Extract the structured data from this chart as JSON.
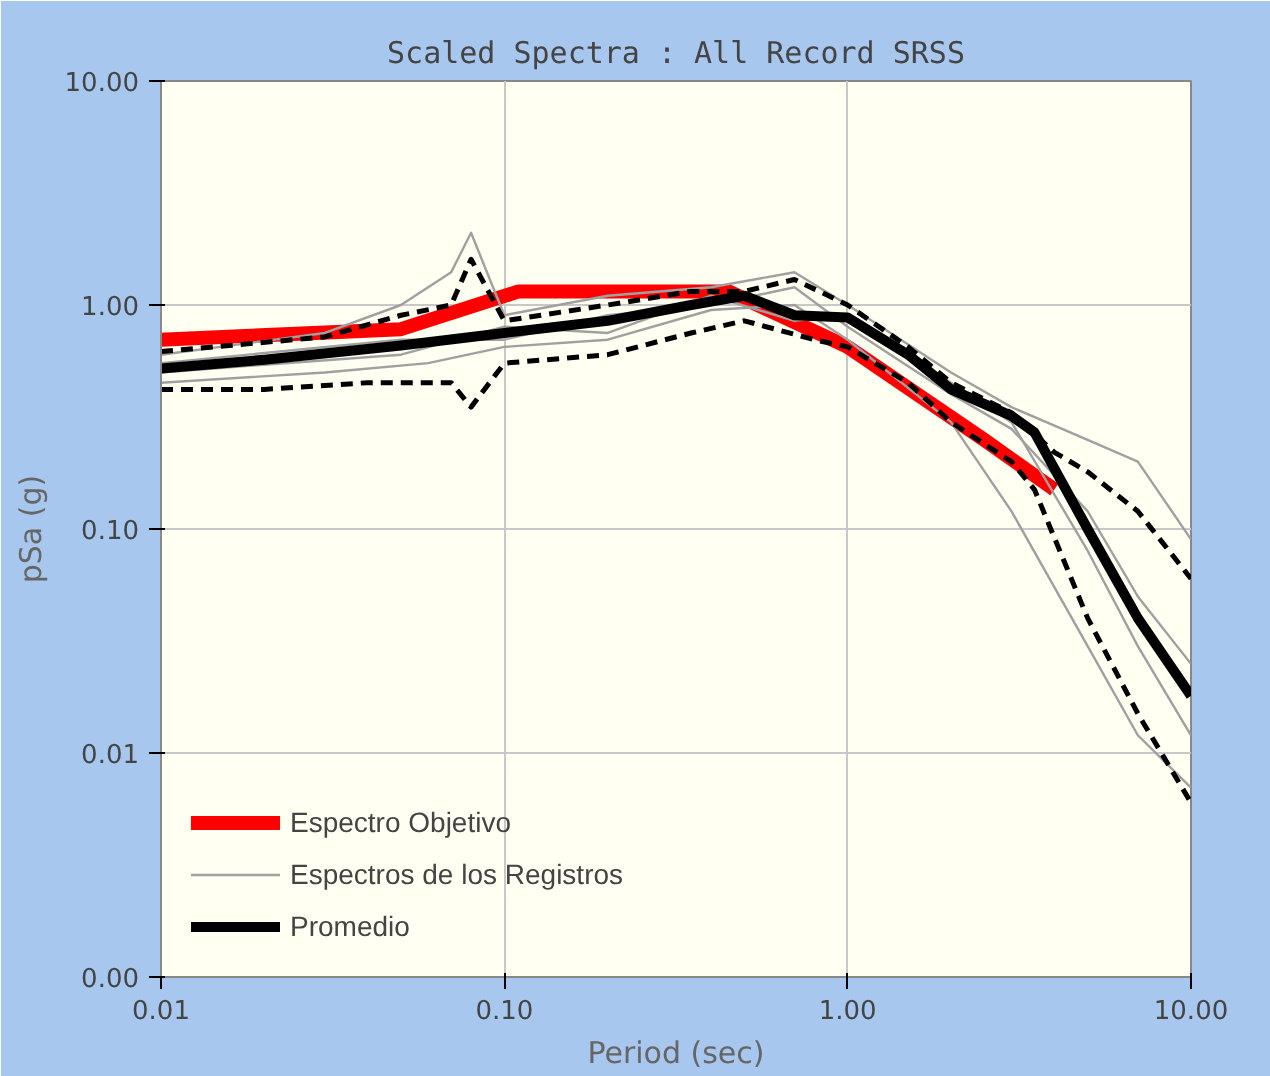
{
  "chart_data": {
    "type": "line",
    "title": "Scaled Spectra : All Record SRSS",
    "xlabel": "Period (sec)",
    "ylabel": "pSa (g)",
    "log": "xy",
    "grid": true,
    "legend": "bottom left",
    "xlim": [
      0.01,
      10
    ],
    "ylim": [
      0.001,
      10
    ],
    "xticks": [
      {
        "value": 0.01,
        "label": "0.01"
      },
      {
        "value": 0.1,
        "label": "0.10"
      },
      {
        "value": 1,
        "label": "1.00"
      },
      {
        "value": 10,
        "label": "10.00"
      }
    ],
    "yticks": [
      {
        "value": 0.001,
        "label": "0.00"
      },
      {
        "value": 0.01,
        "label": "0.01"
      },
      {
        "value": 0.1,
        "label": "0.10"
      },
      {
        "value": 1,
        "label": "1.00"
      },
      {
        "value": 10,
        "label": "10.00"
      }
    ],
    "series": [
      {
        "name": "Espectro Objetivo",
        "color": "#ff0000",
        "x": [
          0.01,
          0.05,
          0.11,
          0.45,
          1.0,
          2.5,
          4.0
        ],
        "values": [
          0.7,
          0.78,
          1.15,
          1.15,
          0.65,
          0.25,
          0.15
        ]
      },
      {
        "name": "Espectros de los Registros",
        "color": "#a0a0a0",
        "x": [
          0.01,
          0.03,
          0.05,
          0.07,
          0.08,
          0.1,
          0.2,
          0.4,
          0.7,
          1.0,
          2,
          3,
          5,
          7,
          10
        ],
        "values": [
          0.6,
          0.75,
          1.0,
          1.4,
          2.1,
          0.9,
          1.1,
          1.2,
          1.4,
          1.0,
          0.5,
          0.35,
          0.25,
          0.2,
          0.09
        ]
      },
      {
        "color": "#a0a0a0",
        "x": [
          0.01,
          0.03,
          0.06,
          0.1,
          0.2,
          0.4,
          0.7,
          1.0,
          2,
          3,
          5,
          7,
          10
        ],
        "values": [
          0.45,
          0.5,
          0.55,
          0.65,
          0.7,
          0.95,
          1.0,
          0.7,
          0.3,
          0.12,
          0.03,
          0.012,
          0.007
        ]
      },
      {
        "color": "#a0a0a0",
        "x": [
          0.01,
          0.05,
          0.1,
          0.2,
          0.4,
          0.7,
          1.0,
          2,
          3,
          5,
          7,
          10
        ],
        "values": [
          0.5,
          0.6,
          0.8,
          0.75,
          1.1,
          0.85,
          0.9,
          0.45,
          0.3,
          0.08,
          0.03,
          0.012
        ]
      },
      {
        "color": "#a0a0a0",
        "x": [
          0.01,
          0.05,
          0.1,
          0.2,
          0.4,
          0.7,
          1,
          2,
          3,
          5,
          7,
          10
        ],
        "values": [
          0.55,
          0.7,
          0.7,
          0.9,
          1.0,
          1.2,
          0.8,
          0.4,
          0.28,
          0.12,
          0.05,
          0.025
        ]
      },
      {
        "color": "#000000",
        "line_style": "dashed",
        "x": [
          0.01,
          0.03,
          0.05,
          0.07,
          0.08,
          0.1,
          0.2,
          0.35,
          0.5,
          0.7,
          1.0,
          1.5,
          2.0,
          3.0,
          4,
          5,
          7,
          10
        ],
        "values": [
          0.62,
          0.72,
          0.9,
          1.0,
          1.6,
          0.85,
          1.0,
          1.15,
          1.15,
          1.3,
          1.0,
          0.65,
          0.45,
          0.33,
          0.22,
          0.18,
          0.12,
          0.06
        ]
      },
      {
        "color": "#000000",
        "line_style": "dashed",
        "x": [
          0.01,
          0.02,
          0.04,
          0.07,
          0.08,
          0.1,
          0.2,
          0.35,
          0.5,
          0.8,
          1.0,
          1.5,
          2.0,
          3.0,
          3.5,
          5,
          7,
          10
        ],
        "values": [
          0.42,
          0.42,
          0.45,
          0.45,
          0.35,
          0.55,
          0.6,
          0.75,
          0.85,
          0.7,
          0.65,
          0.45,
          0.3,
          0.2,
          0.15,
          0.04,
          0.015,
          0.006
        ]
      },
      {
        "name": "Promedio",
        "color": "#000000",
        "x": [
          0.01,
          0.02,
          0.05,
          0.1,
          0.2,
          0.35,
          0.5,
          0.7,
          1.0,
          1.5,
          2.0,
          3.0,
          3.5,
          5,
          7,
          10
        ],
        "values": [
          0.52,
          0.57,
          0.66,
          0.75,
          0.85,
          1.0,
          1.1,
          0.9,
          0.88,
          0.6,
          0.42,
          0.32,
          0.27,
          0.1,
          0.04,
          0.018
        ]
      }
    ]
  }
}
